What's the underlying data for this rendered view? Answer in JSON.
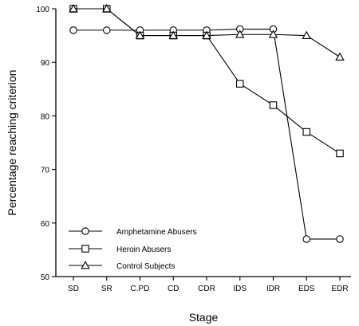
{
  "chart_data": {
    "type": "line",
    "xlabel": "Stage",
    "ylabel": "Percentage reaching criterion",
    "categories": [
      "SD",
      "SR",
      "C.PD",
      "CD",
      "CDR",
      "IDS",
      "IDR",
      "EDS",
      "EDR"
    ],
    "ylim": [
      50,
      100
    ],
    "yticks": [
      50,
      60,
      70,
      80,
      90,
      100
    ],
    "grid": false,
    "legend_position": "bottom-left",
    "series": [
      {
        "name": "Amphetamine Abusers",
        "marker": "circle",
        "values": [
          96,
          96,
          96,
          96,
          96,
          96.2,
          96.2,
          57,
          57
        ]
      },
      {
        "name": "Heroin Abusers",
        "marker": "square",
        "values": [
          100,
          100,
          95,
          95,
          95,
          86,
          82,
          77,
          73
        ]
      },
      {
        "name": "Control Subjects",
        "marker": "triangle",
        "values": [
          100,
          100,
          95,
          95,
          95,
          95.2,
          95.2,
          95,
          91
        ]
      }
    ]
  }
}
